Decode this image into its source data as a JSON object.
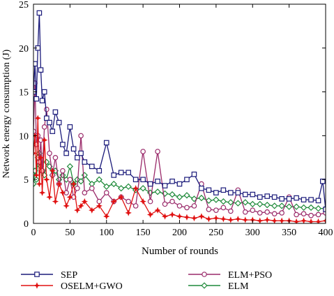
{
  "chart_data": {
    "type": "line",
    "title": "",
    "xlabel": "Number of rounds",
    "ylabel": "Network energy consumption (J)",
    "xlim": [
      0,
      400
    ],
    "ylim": [
      0,
      25
    ],
    "xticks": [
      "0",
      "50",
      "100",
      "150",
      "200",
      "250",
      "300",
      "350",
      "400"
    ],
    "yticks": [
      "0",
      "5",
      "10",
      "15",
      "20",
      "25"
    ],
    "grid": false,
    "legend_position": "bottom",
    "series": [
      {
        "name": "SEP",
        "color": "#1a1a7a",
        "marker": "square",
        "x": [
          0,
          2,
          4,
          6,
          8,
          10,
          12,
          15,
          18,
          22,
          26,
          30,
          35,
          40,
          45,
          50,
          55,
          60,
          65,
          70,
          80,
          90,
          100,
          110,
          120,
          130,
          140,
          150,
          160,
          170,
          180,
          190,
          200,
          210,
          220,
          230,
          240,
          250,
          260,
          270,
          280,
          290,
          300,
          310,
          320,
          330,
          340,
          350,
          360,
          370,
          380,
          390,
          396,
          400
        ],
        "y": [
          15.0,
          18.2,
          14.2,
          20.0,
          24.0,
          17.5,
          14.0,
          15.0,
          12.0,
          11.5,
          10.5,
          12.7,
          11.5,
          9.0,
          8.0,
          11.0,
          8.5,
          7.5,
          8.0,
          7.0,
          6.5,
          6.0,
          9.2,
          5.5,
          5.8,
          5.8,
          5.0,
          5.0,
          4.5,
          4.8,
          4.3,
          4.8,
          4.5,
          5.0,
          5.6,
          4.0,
          3.8,
          3.5,
          3.8,
          3.5,
          3.5,
          3.3,
          3.3,
          3.0,
          3.1,
          3.0,
          2.8,
          2.8,
          2.9,
          2.7,
          2.7,
          2.6,
          4.8,
          1.6
        ]
      },
      {
        "name": "OSELM+GWO",
        "color": "#e01010",
        "marker": "star",
        "x": [
          0,
          2,
          4,
          6,
          8,
          10,
          12,
          15,
          18,
          22,
          26,
          30,
          35,
          40,
          45,
          50,
          55,
          60,
          65,
          70,
          80,
          90,
          100,
          110,
          120,
          130,
          140,
          150,
          160,
          170,
          180,
          190,
          200,
          210,
          220,
          230,
          240,
          250,
          260,
          270,
          280,
          290,
          300,
          310,
          320,
          330,
          340,
          350,
          360,
          370,
          380,
          390,
          400
        ],
        "y": [
          8.0,
          10.0,
          5.5,
          12.0,
          4.5,
          7.5,
          3.5,
          9.5,
          5.0,
          3.0,
          6.0,
          2.5,
          4.5,
          3.5,
          2.0,
          3.0,
          4.5,
          1.5,
          2.0,
          2.5,
          1.5,
          2.0,
          0.8,
          2.5,
          3.0,
          1.2,
          4.0,
          2.5,
          1.0,
          1.5,
          0.8,
          1.0,
          0.8,
          0.7,
          0.6,
          0.8,
          0.5,
          0.6,
          0.5,
          0.4,
          0.5,
          0.4,
          0.4,
          0.3,
          0.4,
          0.3,
          0.3,
          0.3,
          0.2,
          0.3,
          0.2,
          0.2,
          0.3
        ]
      },
      {
        "name": "ELM+PSO",
        "color": "#9a2a6a",
        "marker": "circle",
        "x": [
          0,
          2,
          4,
          6,
          8,
          10,
          12,
          15,
          18,
          22,
          26,
          30,
          35,
          40,
          45,
          50,
          55,
          60,
          65,
          70,
          80,
          90,
          100,
          110,
          120,
          130,
          140,
          150,
          160,
          170,
          180,
          190,
          200,
          210,
          220,
          230,
          240,
          250,
          260,
          270,
          280,
          290,
          300,
          310,
          320,
          330,
          340,
          350,
          360,
          370,
          380,
          390,
          400
        ],
        "y": [
          10.5,
          16.0,
          9.0,
          10.0,
          7.0,
          9.5,
          6.0,
          11.0,
          13.0,
          8.0,
          5.5,
          7.5,
          4.5,
          6.0,
          3.5,
          5.0,
          3.0,
          4.0,
          10.0,
          3.5,
          4.0,
          2.5,
          3.5,
          2.5,
          3.0,
          2.5,
          2.0,
          8.2,
          2.5,
          8.2,
          2.2,
          2.5,
          2.0,
          1.8,
          2.0,
          4.5,
          1.6,
          1.5,
          1.8,
          1.4,
          3.8,
          1.3,
          1.5,
          1.2,
          1.3,
          1.1,
          1.2,
          3.0,
          1.0,
          1.1,
          0.9,
          1.0,
          1.2
        ]
      },
      {
        "name": "ELM",
        "color": "#1f8a3a",
        "marker": "diamond",
        "x": [
          0,
          2,
          4,
          6,
          8,
          10,
          12,
          15,
          18,
          22,
          26,
          30,
          35,
          40,
          45,
          50,
          55,
          60,
          65,
          70,
          80,
          90,
          100,
          110,
          120,
          130,
          140,
          150,
          160,
          170,
          180,
          190,
          200,
          210,
          220,
          230,
          240,
          250,
          260,
          270,
          280,
          290,
          300,
          310,
          320,
          330,
          340,
          350,
          360,
          370,
          380,
          390,
          400
        ],
        "y": [
          4.5,
          6.0,
          5.0,
          7.5,
          8.0,
          6.5,
          6.0,
          5.5,
          7.0,
          6.5,
          5.5,
          6.0,
          5.0,
          5.5,
          5.0,
          6.5,
          4.5,
          5.0,
          4.8,
          5.5,
          4.5,
          5.0,
          4.2,
          4.5,
          4.0,
          4.2,
          3.8,
          4.0,
          3.5,
          3.6,
          3.4,
          3.3,
          3.0,
          3.2,
          2.8,
          2.9,
          2.6,
          2.7,
          2.5,
          2.4,
          2.3,
          2.4,
          2.2,
          2.2,
          2.1,
          2.0,
          2.0,
          1.9,
          1.9,
          1.8,
          1.8,
          1.7,
          1.7
        ]
      }
    ]
  }
}
